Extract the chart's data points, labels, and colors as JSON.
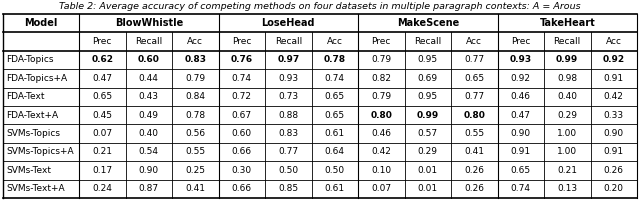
{
  "title": "Table 2: Average accuracy of competing methods on four datasets in multiple paragraph contexts: A = Arous",
  "col_groups": [
    "BlowWhistle",
    "LoseHead",
    "MakeScene",
    "TakeHeart"
  ],
  "sub_cols": [
    "Prec",
    "Recall",
    "Acc"
  ],
  "row_labels": [
    "FDA-Topics",
    "FDA-Topics+A",
    "FDA-Text",
    "FDA-Text+A",
    "SVMs-Topics",
    "SVMs-Topics+A",
    "SVMs-Text",
    "SVMs-Text+A"
  ],
  "data": [
    [
      [
        0.62,
        0.6,
        0.83
      ],
      [
        0.76,
        0.97,
        0.78
      ],
      [
        0.79,
        0.95,
        0.77
      ],
      [
        0.93,
        0.99,
        0.92
      ]
    ],
    [
      [
        0.47,
        0.44,
        0.79
      ],
      [
        0.74,
        0.93,
        0.74
      ],
      [
        0.82,
        0.69,
        0.65
      ],
      [
        0.92,
        0.98,
        0.91
      ]
    ],
    [
      [
        0.65,
        0.43,
        0.84
      ],
      [
        0.72,
        0.73,
        0.65
      ],
      [
        0.79,
        0.95,
        0.77
      ],
      [
        0.46,
        0.4,
        0.42
      ]
    ],
    [
      [
        0.45,
        0.49,
        0.78
      ],
      [
        0.67,
        0.88,
        0.65
      ],
      [
        0.8,
        0.99,
        0.8
      ],
      [
        0.47,
        0.29,
        0.33
      ]
    ],
    [
      [
        0.07,
        0.4,
        0.56
      ],
      [
        0.6,
        0.83,
        0.61
      ],
      [
        0.46,
        0.57,
        0.55
      ],
      [
        0.9,
        1.0,
        0.9
      ]
    ],
    [
      [
        0.21,
        0.54,
        0.55
      ],
      [
        0.66,
        0.77,
        0.64
      ],
      [
        0.42,
        0.29,
        0.41
      ],
      [
        0.91,
        1.0,
        0.91
      ]
    ],
    [
      [
        0.17,
        0.9,
        0.25
      ],
      [
        0.3,
        0.5,
        0.5
      ],
      [
        0.1,
        0.01,
        0.26
      ],
      [
        0.65,
        0.21,
        0.26
      ]
    ],
    [
      [
        0.24,
        0.87,
        0.41
      ],
      [
        0.66,
        0.85,
        0.61
      ],
      [
        0.07,
        0.01,
        0.26
      ],
      [
        0.74,
        0.13,
        0.2
      ]
    ]
  ],
  "bold": [
    [
      [
        true,
        true,
        true
      ],
      [
        true,
        true,
        true
      ],
      [
        false,
        false,
        false
      ],
      [
        true,
        true,
        true
      ]
    ],
    [
      [
        false,
        false,
        false
      ],
      [
        false,
        false,
        false
      ],
      [
        false,
        false,
        false
      ],
      [
        false,
        false,
        false
      ]
    ],
    [
      [
        false,
        false,
        false
      ],
      [
        false,
        false,
        false
      ],
      [
        false,
        false,
        false
      ],
      [
        false,
        false,
        false
      ]
    ],
    [
      [
        false,
        false,
        false
      ],
      [
        false,
        false,
        false
      ],
      [
        true,
        true,
        true
      ],
      [
        false,
        false,
        false
      ]
    ],
    [
      [
        false,
        false,
        false
      ],
      [
        false,
        false,
        false
      ],
      [
        false,
        false,
        false
      ],
      [
        false,
        false,
        false
      ]
    ],
    [
      [
        false,
        false,
        false
      ],
      [
        false,
        false,
        false
      ],
      [
        false,
        false,
        false
      ],
      [
        false,
        false,
        false
      ]
    ],
    [
      [
        false,
        false,
        false
      ],
      [
        false,
        false,
        false
      ],
      [
        false,
        false,
        false
      ],
      [
        false,
        false,
        false
      ]
    ],
    [
      [
        false,
        false,
        false
      ],
      [
        false,
        false,
        false
      ],
      [
        false,
        false,
        false
      ],
      [
        false,
        false,
        false
      ]
    ]
  ],
  "bg_color": "#ffffff",
  "border_color": "#000000",
  "title_font_size": 6.8,
  "header_font_size": 7.0,
  "data_font_size": 6.5
}
